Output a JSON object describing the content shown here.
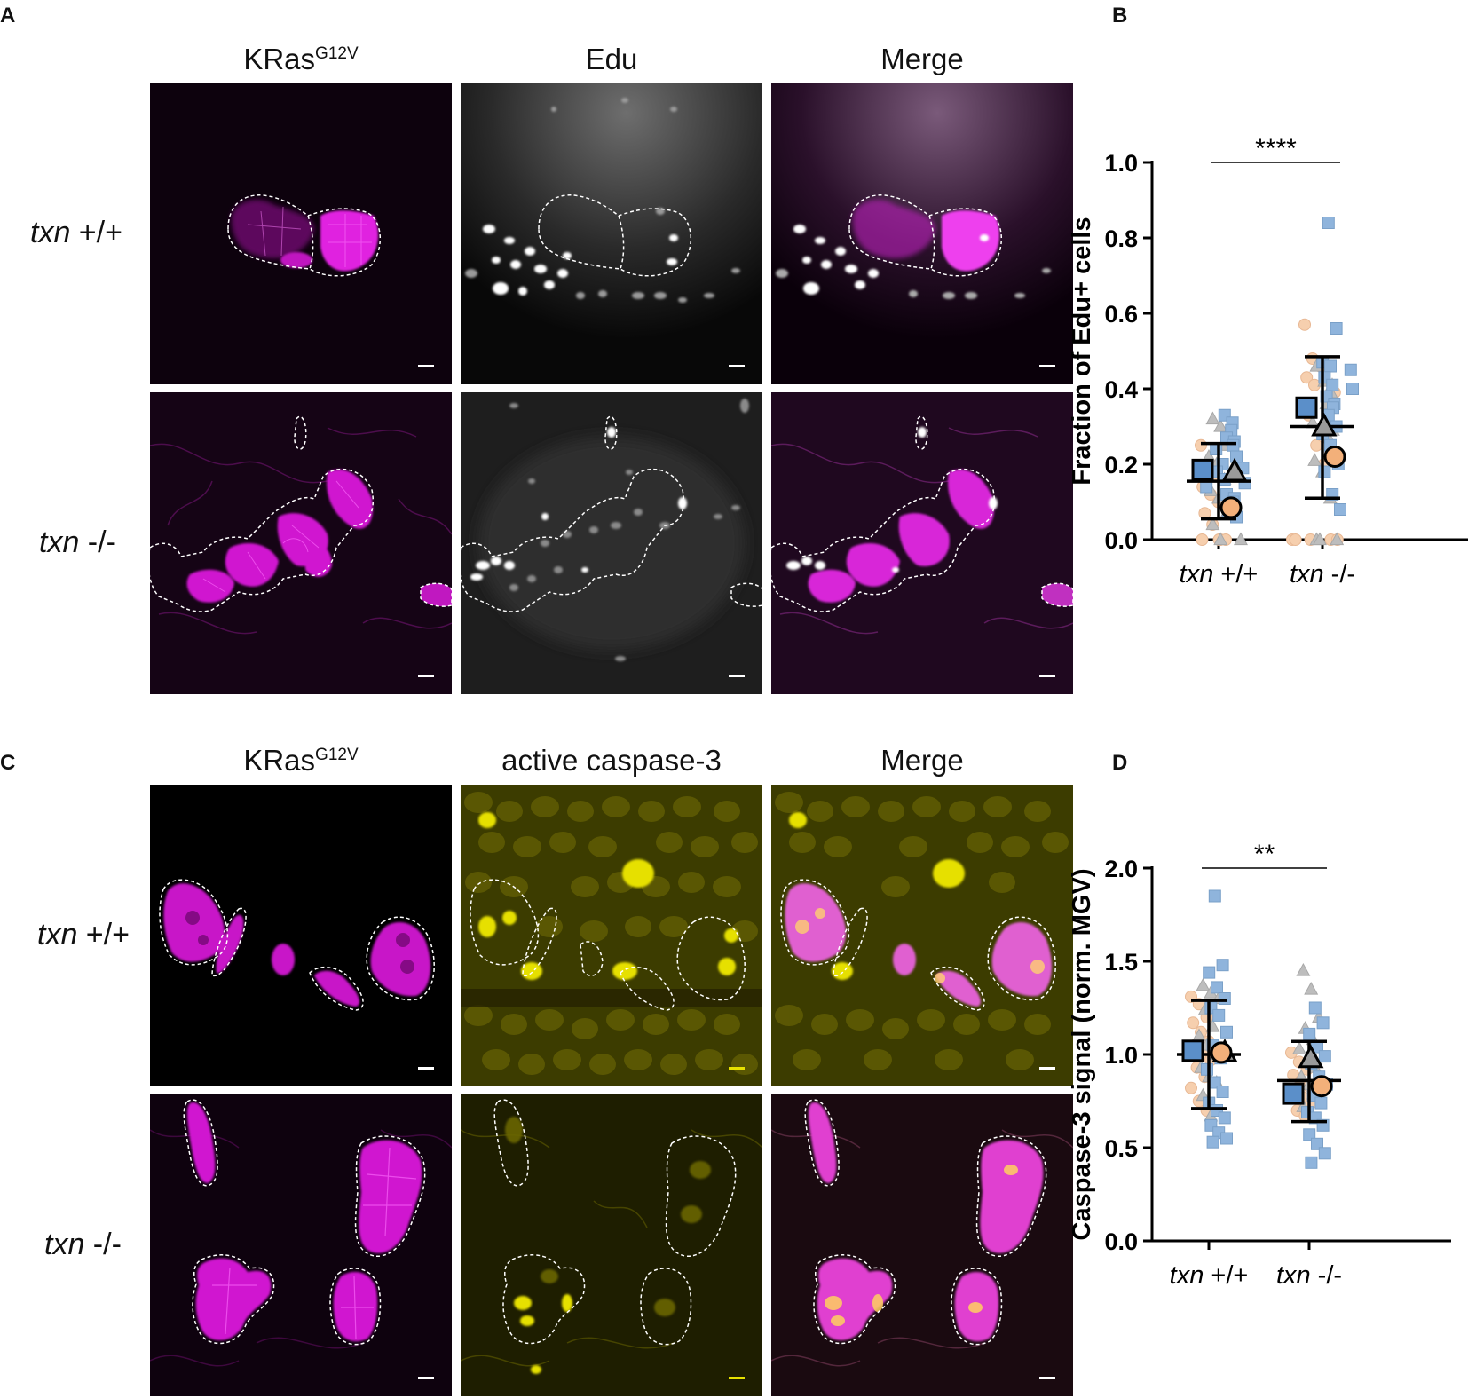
{
  "figure": {
    "panels": {
      "A": {
        "letter": "A",
        "columns": [
          {
            "title": "KRas",
            "superscript": "G12V"
          },
          {
            "title": "Edu",
            "superscript": ""
          },
          {
            "title": "Merge",
            "superscript": ""
          }
        ],
        "rows": [
          {
            "genotype": "txn",
            "allele": " +/+"
          },
          {
            "genotype": "txn",
            "allele": " -/-"
          }
        ]
      },
      "B": {
        "letter": "B"
      },
      "C": {
        "letter": "C",
        "columns": [
          {
            "title": "KRas",
            "superscript": "G12V"
          },
          {
            "title": "active caspase-3",
            "superscript": ""
          },
          {
            "title": "Merge",
            "superscript": ""
          }
        ],
        "rows": [
          {
            "genotype": "txn",
            "allele": " +/+"
          },
          {
            "genotype": "txn",
            "allele": " -/-"
          }
        ]
      },
      "D": {
        "letter": "D"
      }
    },
    "colors": {
      "magenta": "#e020e0",
      "white_signal": "#ffffff",
      "yellow": "#e6e000",
      "replicate_square": "#8fb4dc",
      "replicate_circle": "#f6cfae",
      "replicate_triangle": "#bdbdbd",
      "mean_square": "#5b8fc9",
      "mean_circle": "#f3b07a",
      "mean_triangle": "#9a9a9a"
    },
    "icons": [
      "scale-bar",
      "cell-outline-dashed"
    ]
  },
  "chart_data": [
    {
      "panel": "B",
      "type": "scatter",
      "ylabel": "Fraction of Edu+ cells",
      "categories": [
        "txn +/+",
        "txn -/-"
      ],
      "ylim": [
        0,
        1.0
      ],
      "yticks": [
        "0.0",
        "0.2",
        "0.4",
        "0.6",
        "0.8",
        "1.0"
      ],
      "significance": "****",
      "summary": [
        {
          "category": "txn +/+",
          "mean": 0.155,
          "sd_low": 0.055,
          "sd_high": 0.255
        },
        {
          "category": "txn -/-",
          "mean": 0.3,
          "sd_low": 0.11,
          "sd_high": 0.485
        }
      ],
      "replicate_means": [
        {
          "category": "txn +/+",
          "square": 0.185,
          "triangle": 0.18,
          "circle": 0.085
        },
        {
          "category": "txn -/-",
          "square": 0.35,
          "triangle": 0.3,
          "circle": 0.22
        }
      ],
      "points": {
        "txn +/+": {
          "square": [
            0.33,
            0.31,
            0.29,
            0.27,
            0.26,
            0.25,
            0.24,
            0.22,
            0.2,
            0.19,
            0.18,
            0.16,
            0.15,
            0.14,
            0.12,
            0.11,
            0.1,
            0.07,
            0.06
          ],
          "triangle": [
            0.32,
            0.3,
            0.28,
            0.27,
            0.25,
            0.22,
            0.2,
            0.16,
            0.13,
            0.11,
            0.07,
            0.04,
            0.0,
            0.0
          ],
          "circle": [
            0.25,
            0.2,
            0.17,
            0.14,
            0.12,
            0.1,
            0.07,
            0.04,
            0.0,
            0.0,
            0.0,
            0.0
          ]
        },
        "txn -/-": {
          "square": [
            0.84,
            0.56,
            0.47,
            0.46,
            0.45,
            0.43,
            0.41,
            0.4,
            0.38,
            0.36,
            0.35,
            0.33,
            0.3,
            0.28,
            0.25,
            0.2,
            0.18,
            0.12,
            0.08
          ],
          "triangle": [
            0.46,
            0.42,
            0.41,
            0.39,
            0.36,
            0.31,
            0.29,
            0.27,
            0.21,
            0.18,
            0.11,
            0.0,
            0.0,
            0.0
          ],
          "circle": [
            0.57,
            0.48,
            0.46,
            0.43,
            0.41,
            0.39,
            0.33,
            0.25,
            0.2,
            0.0,
            0.0,
            0.0,
            0.0,
            0.0
          ]
        }
      }
    },
    {
      "panel": "D",
      "type": "scatter",
      "ylabel": "Caspase-3 signal (norm. MGV)",
      "categories": [
        "txn +/+",
        "txn -/-"
      ],
      "ylim": [
        0,
        2.0
      ],
      "yticks": [
        "0.0",
        "0.5",
        "1.0",
        "1.5",
        "2.0"
      ],
      "significance": "**",
      "summary": [
        {
          "category": "txn +/+",
          "mean": 1.0,
          "sd_low": 0.71,
          "sd_high": 1.29
        },
        {
          "category": "txn -/-",
          "mean": 0.86,
          "sd_low": 0.64,
          "sd_high": 1.07
        }
      ],
      "replicate_means": [
        {
          "category": "txn +/+",
          "square": 1.02,
          "triangle": 1.01,
          "circle": 1.01
        },
        {
          "category": "txn -/-",
          "square": 0.79,
          "triangle": 0.98,
          "circle": 0.83
        }
      ],
      "points": {
        "txn +/+": {
          "square": [
            1.85,
            1.48,
            1.44,
            1.36,
            1.3,
            1.25,
            1.21,
            1.12,
            1.05,
            0.98,
            0.92,
            0.85,
            0.8,
            0.74,
            0.7,
            0.66,
            0.62,
            0.58,
            0.55,
            0.53
          ],
          "triangle": [
            1.37,
            1.33,
            1.3,
            1.24,
            1.15,
            1.1,
            1.05,
            1.0,
            0.93,
            0.88,
            0.85,
            0.78,
            0.67
          ],
          "circle": [
            1.31,
            1.27,
            1.2,
            1.17,
            1.12,
            1.07,
            1.05,
            1.0,
            0.97,
            0.93,
            0.88,
            0.82,
            0.75,
            0.7
          ]
        },
        "txn -/-": {
          "square": [
            1.25,
            1.17,
            1.11,
            1.04,
            0.99,
            0.95,
            0.88,
            0.84,
            0.78,
            0.74,
            0.69,
            0.66,
            0.62,
            0.57,
            0.52,
            0.47,
            0.42
          ],
          "triangle": [
            1.45,
            1.35,
            1.2,
            1.14,
            1.08,
            1.03,
            0.97,
            0.93,
            0.88,
            0.84,
            0.79,
            0.72
          ],
          "circle": [
            1.01,
            0.96,
            0.92,
            0.89,
            0.86,
            0.83,
            0.8,
            0.77,
            0.74,
            0.7,
            0.67
          ]
        }
      }
    }
  ]
}
